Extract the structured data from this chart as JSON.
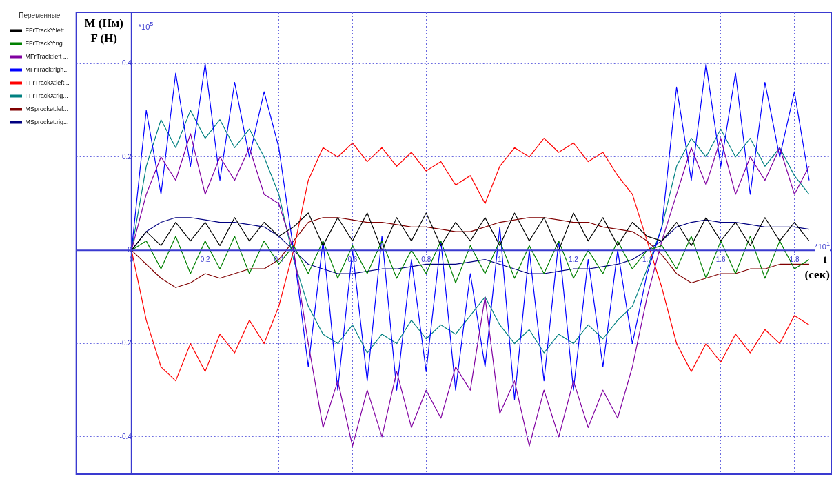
{
  "chart_data": {
    "type": "line",
    "xlabel": "t (сек)",
    "ylabel": "M (Нм)\nF (Н)",
    "legend_title": "Переменные",
    "legend": "left",
    "grid": true,
    "line_style": "solid",
    "marker": "none",
    "annotations": [
      "*10$^{5}$",
      "*10$^{1}$"
    ],
    "xlim": [
      -0.15,
      1.9
    ],
    "xticks": [
      0,
      0.2,
      0.4,
      0.6,
      0.8,
      1,
      1.2,
      1.4,
      1.6,
      1.8
    ],
    "ylim": [
      -0.48,
      0.51
    ],
    "yticks": [
      -0.4,
      -0.2,
      0,
      0.2,
      0.4
    ],
    "x": [
      0,
      0.04,
      0.08,
      0.12,
      0.16,
      0.2,
      0.24,
      0.28,
      0.32,
      0.36,
      0.4,
      0.44,
      0.48,
      0.52,
      0.56,
      0.6,
      0.64,
      0.68,
      0.72,
      0.76,
      0.8,
      0.84,
      0.88,
      0.92,
      0.96,
      1,
      1.04,
      1.08,
      1.12,
      1.16,
      1.2,
      1.24,
      1.28,
      1.32,
      1.36,
      1.4,
      1.44,
      1.48,
      1.52,
      1.56,
      1.6,
      1.64,
      1.68,
      1.72,
      1.76,
      1.8,
      1.84
    ],
    "series": [
      {
        "name": "FFrTrackY:left...",
        "color": "#000000",
        "values": [
          0,
          0.04,
          0.01,
          0.06,
          0.02,
          0.06,
          0.01,
          0.07,
          0.02,
          0.06,
          0.03,
          0.05,
          0.08,
          0.01,
          0.07,
          0.02,
          0.08,
          0,
          0.07,
          0.02,
          0.08,
          0.01,
          0.06,
          0.02,
          0.07,
          0.01,
          0.08,
          0.02,
          0.07,
          0,
          0.08,
          0.02,
          0.07,
          0.01,
          0.06,
          0.03,
          0.02,
          0.06,
          0.01,
          0.07,
          0.02,
          0.06,
          0.01,
          0.07,
          0.02,
          0.06,
          0.02
        ]
      },
      {
        "name": "FFrTrackY:rig...",
        "color": "#008000",
        "values": [
          0,
          0.02,
          -0.04,
          0.03,
          -0.05,
          0.02,
          -0.04,
          0.03,
          -0.05,
          0.02,
          -0.03,
          0.01,
          -0.05,
          0.02,
          -0.06,
          0.01,
          -0.05,
          0.02,
          -0.06,
          0,
          -0.05,
          0.02,
          -0.07,
          0.01,
          -0.05,
          0.02,
          -0.06,
          0.01,
          -0.05,
          0.02,
          -0.06,
          0,
          -0.05,
          0.02,
          -0.04,
          0,
          0.01,
          -0.04,
          0.03,
          -0.06,
          0.02,
          -0.05,
          0.03,
          -0.06,
          0.02,
          -0.04,
          -0.02
        ]
      },
      {
        "name": "MFrTrack:left ...",
        "color": "#8000a0",
        "values": [
          0,
          0.12,
          0.2,
          0.15,
          0.25,
          0.12,
          0.2,
          0.15,
          0.22,
          0.12,
          0.1,
          0,
          -0.2,
          -0.38,
          -0.28,
          -0.42,
          -0.3,
          -0.4,
          -0.26,
          -0.38,
          -0.3,
          -0.36,
          -0.25,
          -0.3,
          -0.1,
          -0.35,
          -0.28,
          -0.42,
          -0.3,
          -0.4,
          -0.28,
          -0.38,
          -0.3,
          -0.36,
          -0.25,
          -0.1,
          0.02,
          0.12,
          0.22,
          0.14,
          0.24,
          0.12,
          0.2,
          0.15,
          0.22,
          0.12,
          0.18
        ]
      },
      {
        "name": "MFrTrack:righ...",
        "color": "#0000ff",
        "values": [
          0,
          0.3,
          0.12,
          0.38,
          0.18,
          0.4,
          0.15,
          0.36,
          0.2,
          0.34,
          0.22,
          0,
          -0.25,
          0.02,
          -0.3,
          0,
          -0.28,
          0.03,
          -0.3,
          -0.02,
          -0.26,
          0.02,
          -0.3,
          -0.05,
          -0.25,
          0.05,
          -0.32,
          0,
          -0.28,
          0.02,
          -0.3,
          -0.02,
          -0.25,
          0,
          -0.2,
          -0.05,
          0.05,
          0.35,
          0.15,
          0.4,
          0.18,
          0.38,
          0.12,
          0.36,
          0.2,
          0.34,
          0.15
        ]
      },
      {
        "name": "FFrTrackX:left...",
        "color": "#ff0000",
        "values": [
          0,
          -0.15,
          -0.25,
          -0.28,
          -0.2,
          -0.26,
          -0.18,
          -0.22,
          -0.15,
          -0.2,
          -0.12,
          0,
          0.15,
          0.22,
          0.2,
          0.23,
          0.19,
          0.22,
          0.18,
          0.21,
          0.17,
          0.19,
          0.14,
          0.16,
          0.1,
          0.18,
          0.22,
          0.2,
          0.24,
          0.21,
          0.23,
          0.19,
          0.21,
          0.16,
          0.12,
          0.02,
          -0.08,
          -0.2,
          -0.26,
          -0.2,
          -0.24,
          -0.18,
          -0.22,
          -0.17,
          -0.2,
          -0.14,
          -0.16
        ]
      },
      {
        "name": "FFrTrackX:rig...",
        "color": "#008080",
        "values": [
          0,
          0.18,
          0.28,
          0.22,
          0.3,
          0.24,
          0.28,
          0.22,
          0.26,
          0.2,
          0.12,
          -0.02,
          -0.12,
          -0.18,
          -0.2,
          -0.16,
          -0.22,
          -0.18,
          -0.2,
          -0.15,
          -0.19,
          -0.16,
          -0.18,
          -0.14,
          -0.1,
          -0.16,
          -0.2,
          -0.17,
          -0.22,
          -0.18,
          -0.2,
          -0.16,
          -0.19,
          -0.15,
          -0.12,
          -0.04,
          0.05,
          0.18,
          0.24,
          0.2,
          0.26,
          0.2,
          0.24,
          0.18,
          0.22,
          0.16,
          0.12
        ]
      },
      {
        "name": "MSprocket:lef...",
        "color": "#800000",
        "values": [
          0,
          -0.03,
          -0.06,
          -0.08,
          -0.07,
          -0.05,
          -0.06,
          -0.05,
          -0.04,
          -0.04,
          -0.02,
          0.02,
          0.06,
          0.07,
          0.07,
          0.065,
          0.06,
          0.06,
          0.055,
          0.05,
          0.05,
          0.045,
          0.04,
          0.04,
          0.05,
          0.06,
          0.065,
          0.07,
          0.07,
          0.065,
          0.06,
          0.06,
          0.05,
          0.045,
          0.04,
          0.02,
          -0.01,
          -0.05,
          -0.07,
          -0.06,
          -0.05,
          -0.05,
          -0.04,
          -0.04,
          -0.03,
          -0.03,
          -0.03
        ]
      },
      {
        "name": "MSprocket:rig...",
        "color": "#000080",
        "values": [
          0,
          0.04,
          0.06,
          0.07,
          0.07,
          0.065,
          0.06,
          0.06,
          0.055,
          0.05,
          0.03,
          0,
          -0.03,
          -0.04,
          -0.05,
          -0.05,
          -0.045,
          -0.04,
          -0.04,
          -0.035,
          -0.03,
          -0.03,
          -0.03,
          -0.025,
          -0.02,
          -0.03,
          -0.04,
          -0.05,
          -0.05,
          -0.045,
          -0.04,
          -0.04,
          -0.035,
          -0.03,
          -0.02,
          0,
          0.02,
          0.05,
          0.06,
          0.065,
          0.06,
          0.06,
          0.055,
          0.05,
          0.05,
          0.05,
          0.045
        ]
      }
    ]
  }
}
